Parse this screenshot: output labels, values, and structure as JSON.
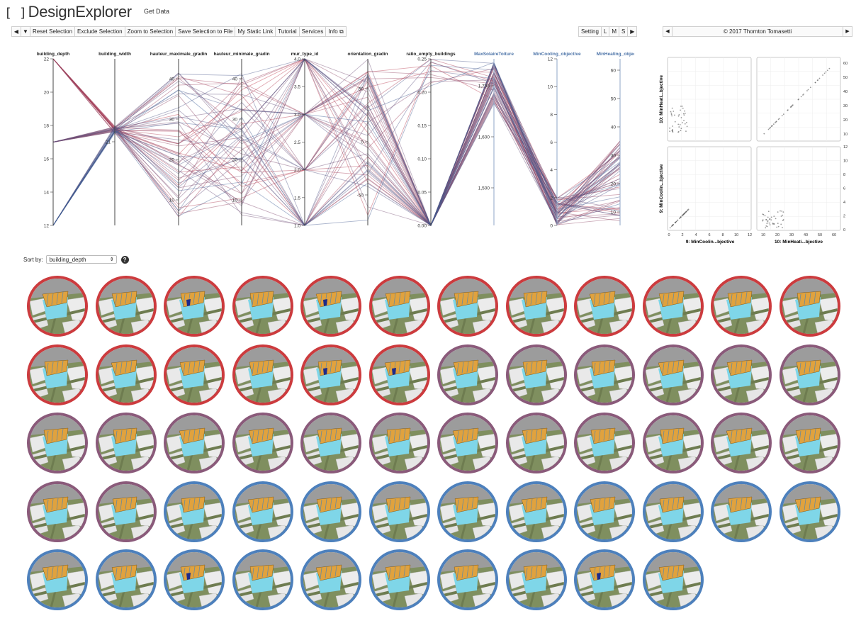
{
  "app": {
    "logo_text": "DesignExplorer",
    "logo_mark": "[ ]",
    "get_data": "Get Data"
  },
  "toolbar": {
    "prev_icon": "triangle-left-icon",
    "menu_icon": "triangle-down-icon",
    "buttons": [
      "Reset Selection",
      "Exclude Selection",
      "Zoom to Selection",
      "Save Selection to File",
      "My Static Link",
      "Tutorial",
      "Services",
      "Info"
    ],
    "info_icon": "external-link-icon"
  },
  "size_toolbar": {
    "setting": "Setting",
    "sizes": [
      "L",
      "M",
      "S"
    ],
    "next_icon": "triangle-right-icon"
  },
  "copyright": {
    "text": "© 2017 Thornton Tomasetti"
  },
  "parallel": {
    "axes": [
      {
        "name": "building_depth",
        "ticks": [
          "22",
          "20",
          "18",
          "16",
          "14",
          "12"
        ],
        "objective": false
      },
      {
        "name": "building_width",
        "ticks": [
          "21"
        ],
        "objective": false
      },
      {
        "name": "hauteur_maximale_gradin",
        "ticks": [
          "40",
          "30",
          "20",
          "10"
        ],
        "objective": false
      },
      {
        "name": "hauteur_minimale_gradin",
        "ticks": [
          "40",
          "30",
          "20",
          "10"
        ],
        "objective": false
      },
      {
        "name": "mur_type_id",
        "ticks": [
          "4.0",
          "3.5",
          "3.0",
          "2.5",
          "2.0",
          "1.5",
          "1.0"
        ],
        "objective": false
      },
      {
        "name": "orientation_gradin",
        "ticks": [
          "50",
          "0",
          "-50"
        ],
        "objective": false
      },
      {
        "name": "ratio_empty_buildings",
        "ticks": [
          "0.25",
          "0.20",
          "0.15",
          "0.10",
          "0.05",
          "0.00"
        ],
        "objective": false
      },
      {
        "name": "MaxSolaireToiture",
        "ticks": [
          "1,700",
          "1,600",
          "1,500"
        ],
        "objective": true
      },
      {
        "name": "MinCooling_objective",
        "ticks": [
          "12",
          "10",
          "8",
          "6",
          "4",
          "2",
          "0"
        ],
        "objective": true
      },
      {
        "name": "MinHeating_objective",
        "ticks": [
          "60",
          "50",
          "40",
          "30",
          "20",
          "10"
        ],
        "objective": true
      }
    ],
    "colors": {
      "high": "#c0384a",
      "low": "#3c5e95",
      "mid": "#8a5a7a"
    }
  },
  "scatter_matrix": {
    "y_label_top": "10: MinHeati...bjective",
    "y_label_bottom": "9: MinCoolin...bjective",
    "x_label_left": "9: MinCoolin...bjective",
    "x_label_right": "10: MinHeati...bjective",
    "right_ticks_top": [
      "60",
      "50",
      "40",
      "30",
      "20",
      "10"
    ],
    "right_ticks_bottom": [
      "12",
      "10",
      "8",
      "6",
      "4",
      "2",
      "0"
    ],
    "bottom_ticks_left": [
      "0",
      "2",
      "4",
      "6",
      "8",
      "10",
      "12"
    ],
    "bottom_ticks_right": [
      "10",
      "20",
      "30",
      "40",
      "50",
      "60"
    ]
  },
  "sort": {
    "label": "Sort by:",
    "value": "building_depth",
    "help_icon": "question-circle-icon"
  },
  "thumbnails": {
    "count": 58,
    "rows": [
      [
        "red",
        "red",
        "red",
        "red",
        "red",
        "red",
        "red",
        "red",
        "red",
        "red",
        "red",
        "red"
      ],
      [
        "red",
        "red",
        "red",
        "red",
        "red",
        "red",
        "purple",
        "purple",
        "purple",
        "purple",
        "purple",
        "purple"
      ],
      [
        "purple",
        "purple",
        "purple",
        "purple",
        "purple",
        "purple",
        "purple",
        "purple",
        "purple",
        "purple",
        "purple",
        "purple"
      ],
      [
        "purple",
        "purple",
        "blue",
        "blue",
        "blue",
        "blue",
        "blue",
        "blue",
        "blue",
        "blue",
        "blue",
        "blue"
      ],
      [
        "blue",
        "blue",
        "blue",
        "blue",
        "blue",
        "blue",
        "blue",
        "blue",
        "blue",
        "blue"
      ]
    ]
  }
}
